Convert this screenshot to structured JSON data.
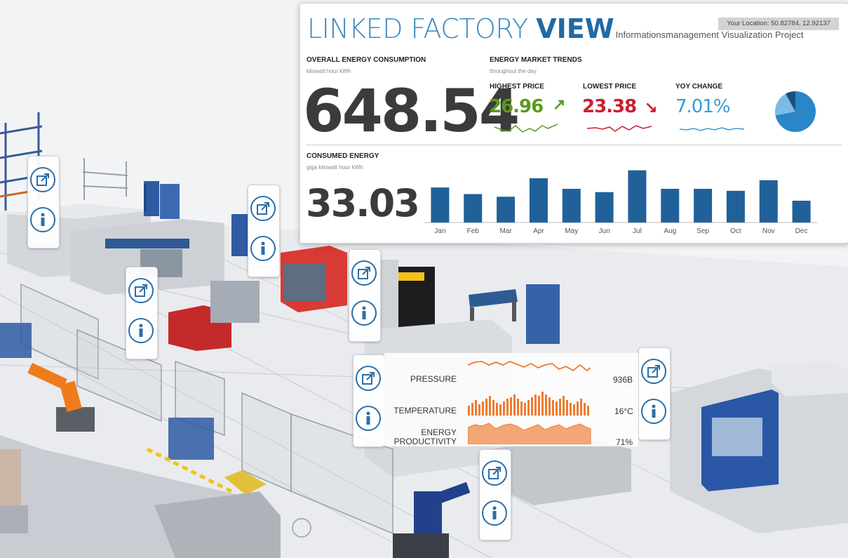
{
  "dashboard": {
    "title_light": "LINKED FACTORY ",
    "title_bold": "VIEW",
    "subtitle": "Informationsmanagement Visualization Project",
    "location": "Your Location: 50.82784, 12.92137",
    "overall": {
      "label": "OVERALL ENERGY CONSUMPTION",
      "unit": "kilowatt hour kWh",
      "value": "648.54"
    },
    "market": {
      "label": "ENERGY MARKET TRENDS",
      "sublabel": "throughout the day",
      "highest": {
        "label": "HIGHEST PRICE",
        "value": "26.96",
        "arrow": "↗",
        "color": "#5a9a1f"
      },
      "lowest": {
        "label": "LOWEST PRICE",
        "value": "23.38",
        "arrow": "↘",
        "color": "#c8202e"
      },
      "yoy": {
        "label": "YOY CHANGE",
        "value": "7.01%",
        "color": "#3a9ad9"
      },
      "pie": {
        "slices": [
          0.72,
          0.2,
          0.08
        ],
        "colors": [
          "#2b86c9",
          "#7bbbe6",
          "#1c4f7a"
        ]
      }
    },
    "consumed": {
      "label": "CONSUMED ENERGY",
      "unit": "giga kilowatt hour kWh",
      "value": "33.03"
    }
  },
  "chart_data": {
    "type": "bar",
    "categories": [
      "Jan",
      "Feb",
      "Mar",
      "Apr",
      "May",
      "Jun",
      "Jul",
      "Aug",
      "Sep",
      "Oct",
      "Nov",
      "Dec"
    ],
    "values": [
      53,
      43,
      39,
      67,
      51,
      46,
      79,
      51,
      51,
      48,
      64,
      33
    ],
    "ylim": [
      0,
      85
    ],
    "bar_color": "#20619a",
    "title": "",
    "xlabel": "",
    "ylabel": ""
  },
  "sensor": {
    "pressure": {
      "label": "PRESSURE",
      "value": "936B"
    },
    "temperature": {
      "label": "TEMPERATURE",
      "value": "16°C"
    },
    "productivity": {
      "label_line1": "ENERGY",
      "label_line2": "PRODUCTIVITY",
      "value": "71%"
    },
    "accent": "#f07b2f"
  },
  "icons": {
    "link": "external-link-icon",
    "info": "info-icon"
  }
}
